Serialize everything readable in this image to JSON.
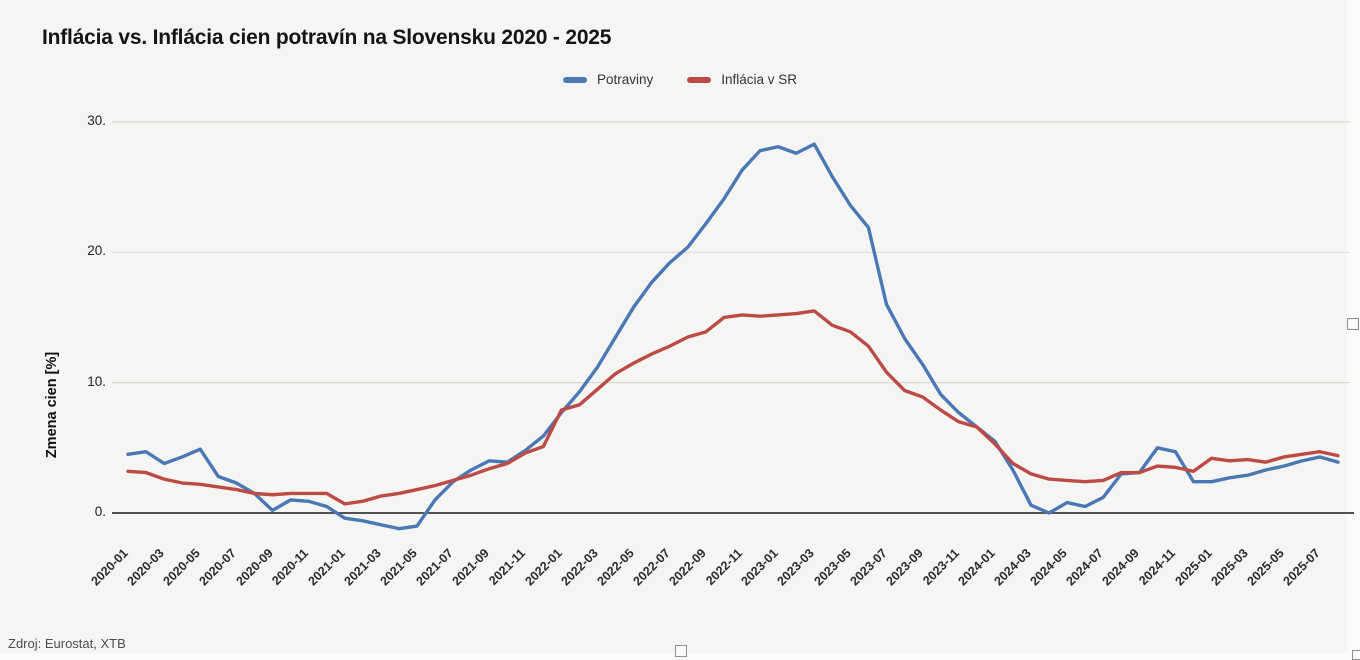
{
  "title": "Inflácia vs. Inflácia cien potravín na Slovensku 2020 - 2025",
  "source": "Zdroj: Eurostat, XTB",
  "legend": [
    {
      "label": "Potraviny",
      "color": "#4a78b5"
    },
    {
      "label": "Inflácia v SR",
      "color": "#bd4b45"
    }
  ],
  "y_axis": {
    "title": "Zmena cien [%]",
    "tick_labels": [
      "30.",
      "20.",
      "10.",
      "0."
    ],
    "tick_values": [
      30,
      20,
      10,
      0
    ]
  },
  "x_axis": {
    "tick_step": 2,
    "tick_labels": [
      "2020-01",
      "2020-03",
      "2020-05",
      "2020-07",
      "2020-09",
      "2020-11",
      "2021-01",
      "2021-03",
      "2021-05",
      "2021-07",
      "2021-09",
      "2021-11",
      "2022-01",
      "2022-03",
      "2022-05",
      "2022-07",
      "2022-09",
      "2022-11",
      "2023-01",
      "2023-03",
      "2023-05",
      "2023-07",
      "2023-09",
      "2023-11",
      "2024-01",
      "2024-03",
      "2024-05",
      "2024-07",
      "2024-09",
      "2024-11",
      "2025-01",
      "2025-03",
      "2025-05",
      "2025-07"
    ]
  },
  "chart_data": {
    "type": "line",
    "title": "Inflácia vs. Inflácia cien potravín na Slovensku 2020 - 2025",
    "xlabel": "",
    "ylabel": "Zmena cien [%]",
    "ylim": [
      -2,
      32
    ],
    "grid": true,
    "legend_position": "top",
    "x": [
      "2020-01",
      "2020-02",
      "2020-03",
      "2020-04",
      "2020-05",
      "2020-06",
      "2020-07",
      "2020-08",
      "2020-09",
      "2020-10",
      "2020-11",
      "2020-12",
      "2021-01",
      "2021-02",
      "2021-03",
      "2021-04",
      "2021-05",
      "2021-06",
      "2021-07",
      "2021-08",
      "2021-09",
      "2021-10",
      "2021-11",
      "2021-12",
      "2022-01",
      "2022-02",
      "2022-03",
      "2022-04",
      "2022-05",
      "2022-06",
      "2022-07",
      "2022-08",
      "2022-09",
      "2022-10",
      "2022-11",
      "2022-12",
      "2023-01",
      "2023-02",
      "2023-03",
      "2023-04",
      "2023-05",
      "2023-06",
      "2023-07",
      "2023-08",
      "2023-09",
      "2023-10",
      "2023-11",
      "2023-12",
      "2024-01",
      "2024-02",
      "2024-03",
      "2024-04",
      "2024-05",
      "2024-06",
      "2024-07",
      "2024-08",
      "2024-09",
      "2024-10",
      "2024-11",
      "2024-12",
      "2025-01",
      "2025-02",
      "2025-03",
      "2025-04",
      "2025-05",
      "2025-06",
      "2025-07",
      "2025-08"
    ],
    "series": [
      {
        "name": "Potraviny",
        "color": "#4a78b5",
        "values": [
          4.5,
          4.7,
          3.8,
          4.3,
          4.9,
          2.8,
          2.3,
          1.5,
          0.2,
          1.0,
          0.9,
          0.5,
          -0.4,
          -0.6,
          -0.9,
          -1.2,
          -1.0,
          1.0,
          2.4,
          3.3,
          4.0,
          3.9,
          4.8,
          5.9,
          7.7,
          9.3,
          11.2,
          13.5,
          15.8,
          17.7,
          19.2,
          20.4,
          22.2,
          24.1,
          26.3,
          27.8,
          28.1,
          27.6,
          28.3,
          25.8,
          23.6,
          21.9,
          16.0,
          13.4,
          11.4,
          9.1,
          7.7,
          6.6,
          5.5,
          3.3,
          0.6,
          0.0,
          0.8,
          0.5,
          1.2,
          3.0,
          3.1,
          5.0,
          4.7,
          2.4,
          2.4,
          2.7,
          2.9,
          3.3,
          3.6,
          4.0,
          4.3,
          3.9
        ]
      },
      {
        "name": "Inflácia v SR",
        "color": "#bd4b45",
        "values": [
          3.2,
          3.1,
          2.6,
          2.3,
          2.2,
          2.0,
          1.8,
          1.5,
          1.4,
          1.5,
          1.5,
          1.5,
          0.7,
          0.9,
          1.3,
          1.5,
          1.8,
          2.1,
          2.5,
          2.9,
          3.4,
          3.8,
          4.6,
          5.1,
          7.9,
          8.3,
          9.5,
          10.7,
          11.5,
          12.2,
          12.8,
          13.5,
          13.9,
          15.0,
          15.2,
          15.1,
          15.2,
          15.3,
          15.5,
          14.4,
          13.9,
          12.8,
          10.8,
          9.4,
          8.9,
          7.9,
          7.0,
          6.6,
          5.3,
          3.8,
          3.0,
          2.6,
          2.5,
          2.4,
          2.5,
          3.1,
          3.1,
          3.6,
          3.5,
          3.2,
          4.2,
          4.0,
          4.1,
          3.9,
          4.3,
          4.5,
          4.7,
          4.4
        ]
      }
    ]
  }
}
